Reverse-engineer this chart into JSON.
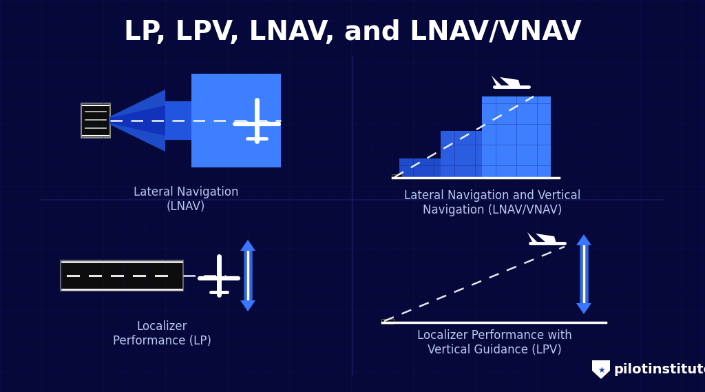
{
  "title": "LP, LPV, LNAV, and LNAV/VNAV",
  "title_color": "#FFFFFF",
  "title_fontsize": 28,
  "bg_color": "#06083a",
  "grid_color": "#111166",
  "blue_light": "#4d8cff",
  "blue_medium": "#2255CC",
  "blue_dark": "#1a3faa",
  "blue_bright": "#3d7fff",
  "blue_mid2": "#2d5fdd",
  "label_lnav": "Lateral Navigation\n(LNAV)",
  "label_lnav_vnav": "Lateral Navigation and Vertical\nNavigation (LNAV/VNAV)",
  "label_lp": "Localizer\nPerformance (LP)",
  "label_lpv": "Localizer Performance with\nVertical Guidance (LPV)",
  "label_color": "#b8c8ee",
  "label_fontsize": 12,
  "brand": "pilotinstitute",
  "brand_fontsize": 14,
  "divider_color": "#1a2070"
}
